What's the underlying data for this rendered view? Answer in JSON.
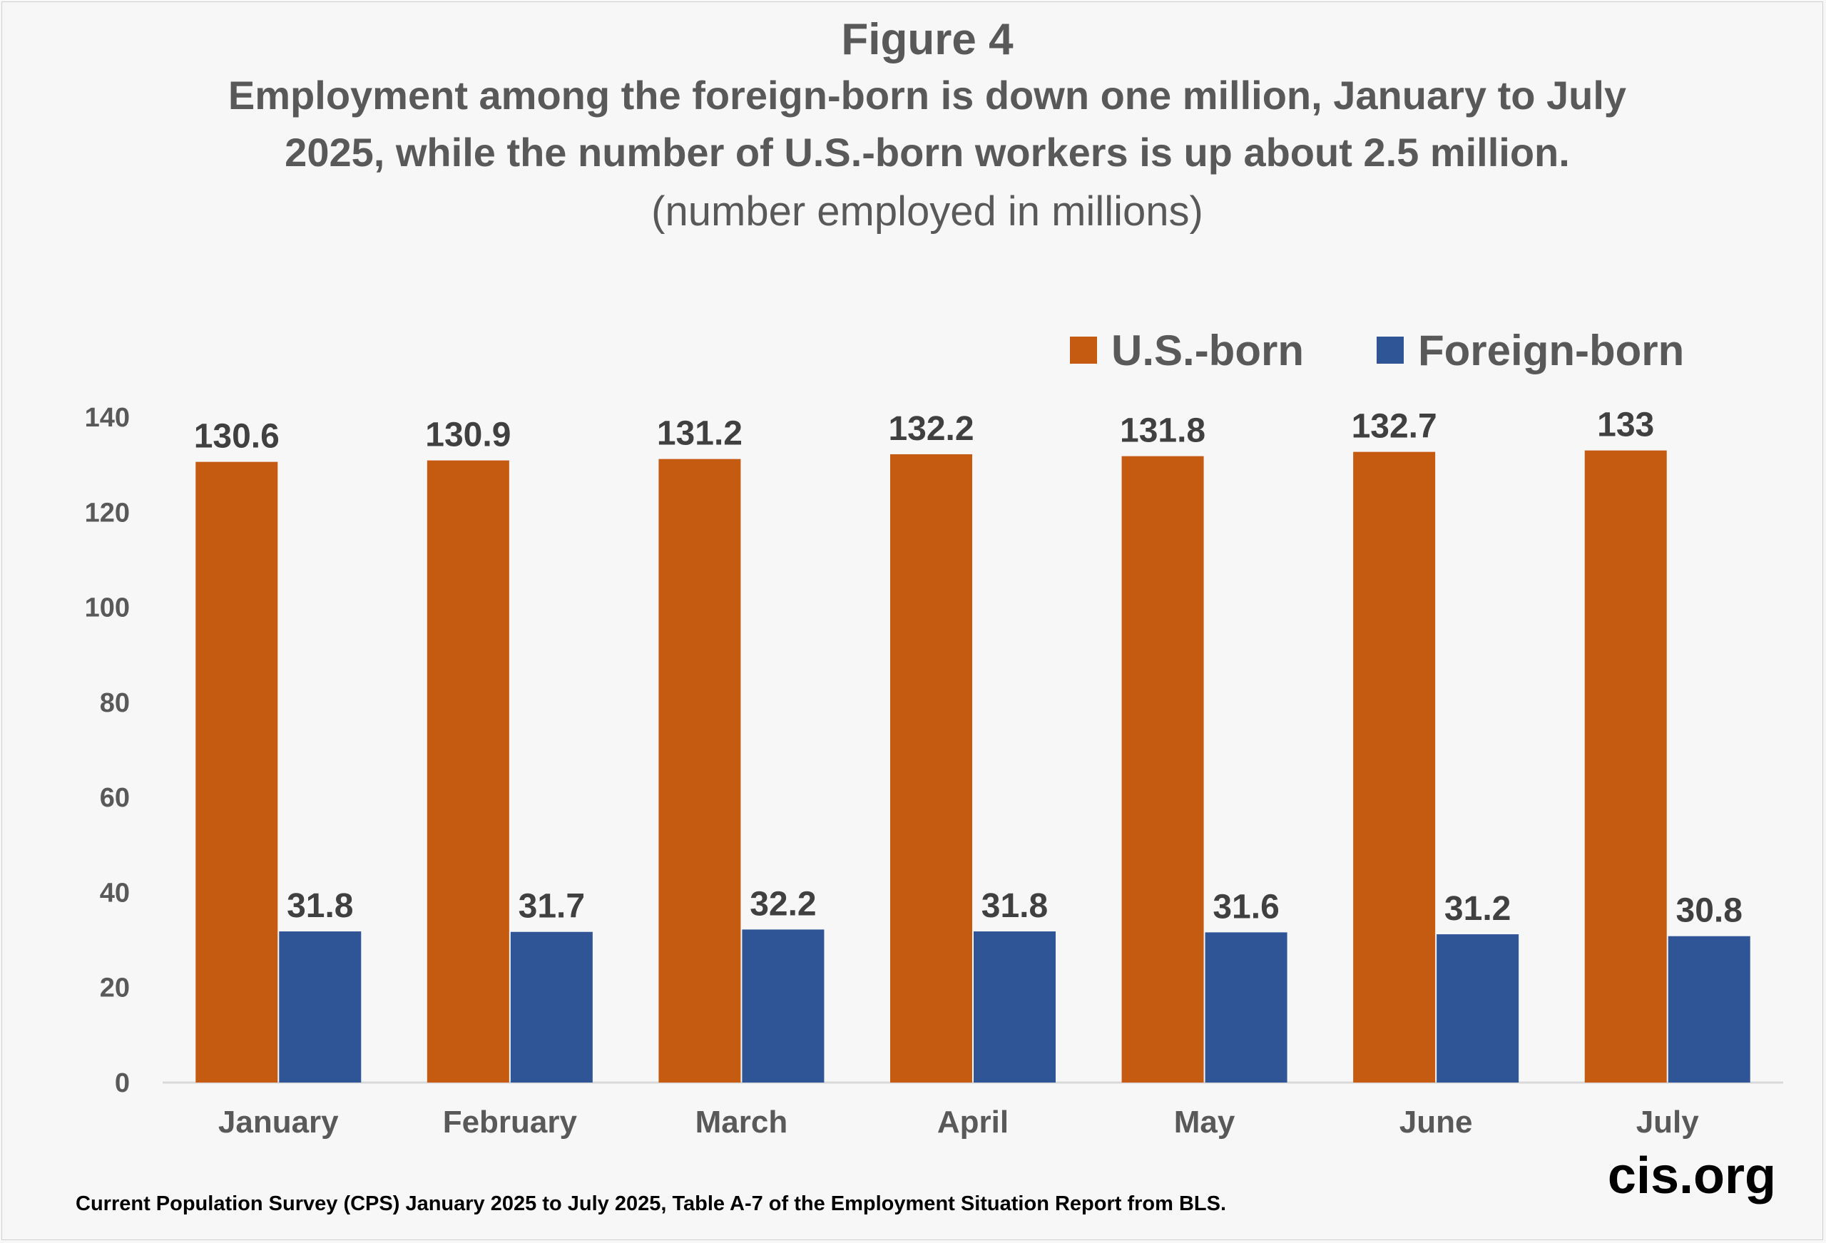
{
  "figure_label": "Figure 4",
  "headline": "Employment among the foreign-born is down one million, January to July 2025, while the number of U.S.-born workers is up about 2.5 million.",
  "subtitle": "(number employed in millions)",
  "source_note": "Current Population Survey (CPS) January 2025 to July 2025, Table A-7 of the Employment Situation Report from BLS.",
  "brand": "cis.org",
  "chart_data": {
    "type": "bar",
    "title": "Figure 4",
    "categories": [
      "January",
      "February",
      "March",
      "April",
      "May",
      "June",
      "July"
    ],
    "series": [
      {
        "name": "U.S.-born",
        "color": "#c55a11",
        "values": [
          130.6,
          130.9,
          131.2,
          132.2,
          131.8,
          132.7,
          133
        ],
        "labels": [
          "130.6",
          "130.9",
          "131.2",
          "132.2",
          "131.8",
          "132.7",
          "133"
        ]
      },
      {
        "name": "Foreign-born",
        "color": "#2f5597",
        "values": [
          31.8,
          31.7,
          32.2,
          31.8,
          31.6,
          31.2,
          30.8
        ],
        "labels": [
          "31.8",
          "31.7",
          "32.2",
          "31.8",
          "31.6",
          "31.2",
          "30.8"
        ]
      }
    ],
    "ylim": [
      0,
      140
    ],
    "yticks": [
      "0",
      "20",
      "40",
      "60",
      "80",
      "100",
      "120",
      "140"
    ],
    "xlabel": "",
    "ylabel": "",
    "grid": false,
    "legend": "top-right"
  }
}
